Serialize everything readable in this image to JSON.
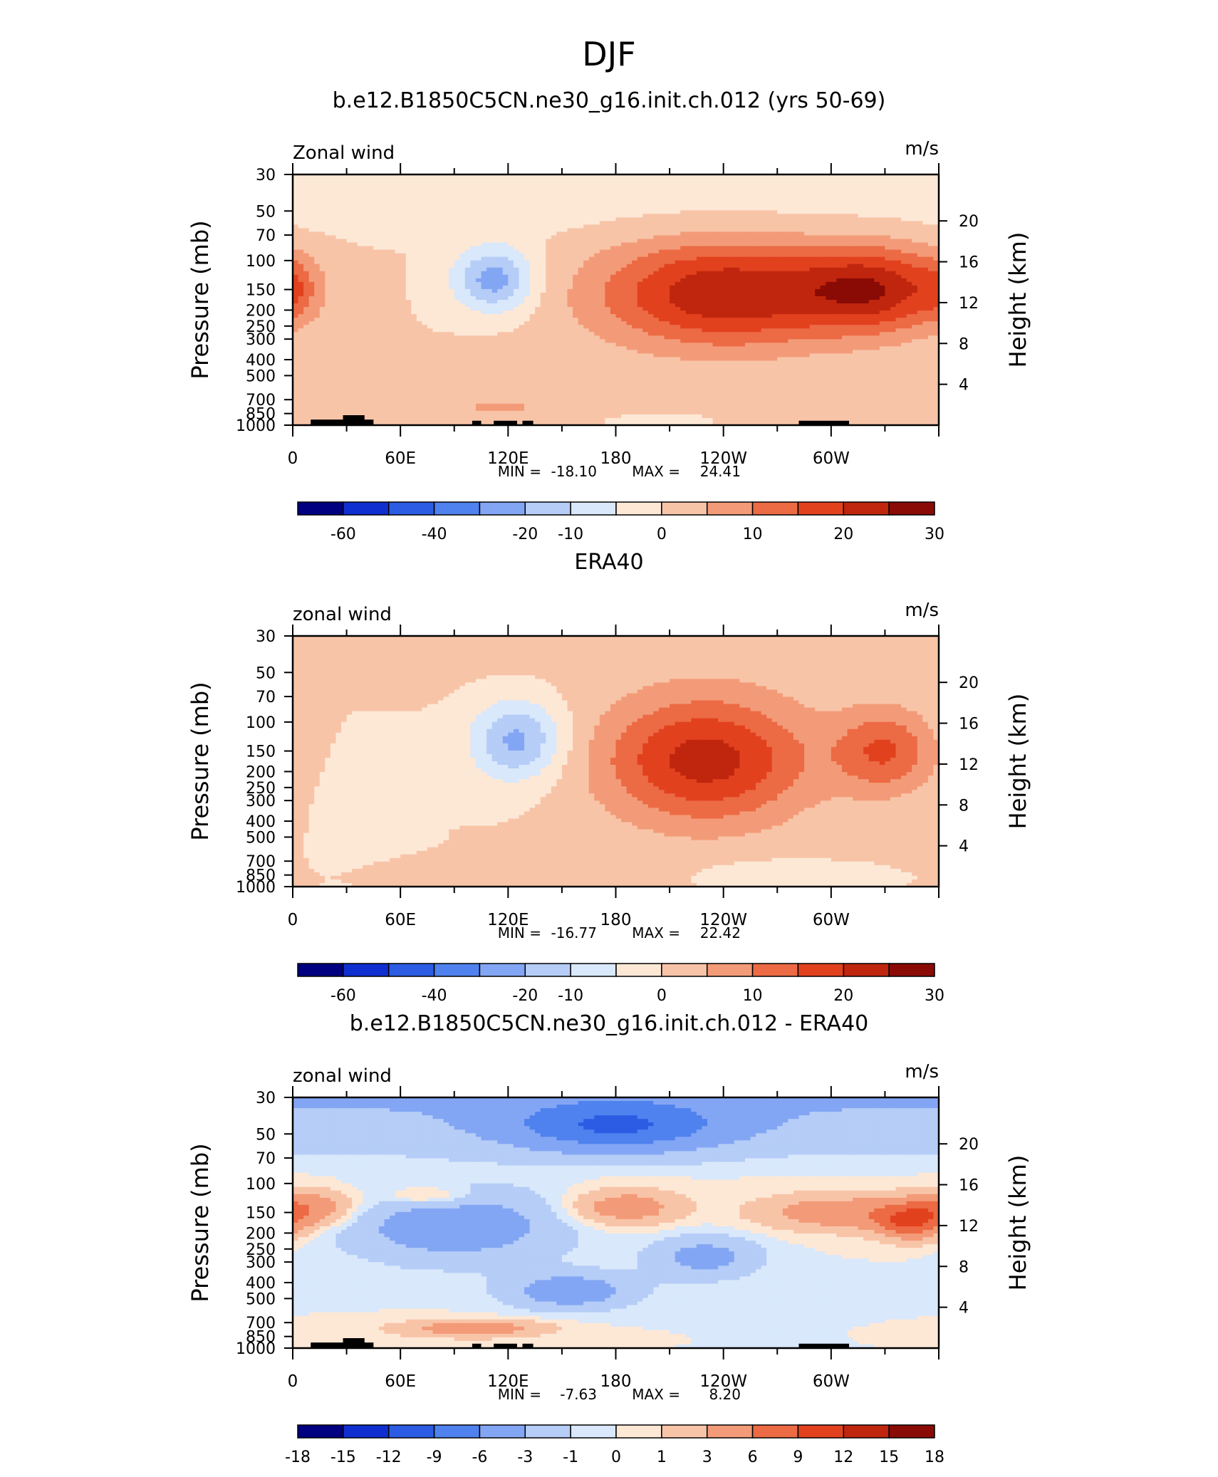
{
  "page_title": "DJF",
  "colors": {
    "cb_main": [
      "#000080",
      "#0f2fd0",
      "#2c5ce3",
      "#4f82ee",
      "#83a6f4",
      "#b5cdf7",
      "#d9e8fb",
      "#fde8d6",
      "#f8c4a8",
      "#f39b78",
      "#ec6a44",
      "#e2411e",
      "#c0260e",
      "#8a0b05"
    ],
    "cb_diff": [
      "#000080",
      "#0f2fd0",
      "#2c5ce3",
      "#4f82ee",
      "#83a6f4",
      "#b5cdf7",
      "#d9e8fb",
      "#fde8d6",
      "#f8c4a8",
      "#f39b78",
      "#ec6a44",
      "#e2411e",
      "#c0260e",
      "#8a0b05"
    ],
    "land": "#000000"
  },
  "chart_data": [
    {
      "type": "heatmap",
      "title": "b.e12.B1850C5CN.ne30_g16.init.ch.012 (yrs 50-69)",
      "left_label": "Zonal wind",
      "units": "m/s",
      "ylabel": "Pressure (mb)",
      "ylabel_right": "Height (km)",
      "x_ticks": [
        "0",
        "60E",
        "120E",
        "180",
        "120W",
        "60W"
      ],
      "y_ticks": [
        "30",
        "50",
        "70",
        "100",
        "150",
        "200",
        "250",
        "300",
        "400",
        "500",
        "700",
        "850",
        "1000"
      ],
      "y_right_ticks": [
        "20",
        "16",
        "12",
        "8",
        "4"
      ],
      "min_label": "MIN =",
      "min_value": "-18.10",
      "max_label": "MAX =",
      "max_value": "24.41",
      "colorbar_labels": [
        "-60",
        "-40",
        "-20",
        "-10",
        "0",
        "10",
        "20",
        "30"
      ],
      "features": [
        {
          "kind": "jet",
          "lon": 240,
          "p": 160,
          "lon_width": 70,
          "logp_width": 0.75,
          "peak": 24.4
        },
        {
          "kind": "jet",
          "lon": 325,
          "p": 150,
          "lon_width": 42,
          "logp_width": 0.6,
          "peak": 20.5
        },
        {
          "kind": "jet",
          "lon": 0,
          "p": 150,
          "lon_width": 12,
          "logp_width": 0.4,
          "peak": 7
        },
        {
          "kind": "jet",
          "lon": 123,
          "p": 420,
          "lon_width": 38,
          "logp_width": 0.28,
          "peak": 4
        },
        {
          "kind": "jet",
          "lon": 115,
          "p": 780,
          "lon_width": 35,
          "logp_width": 0.12,
          "peak": 6
        },
        {
          "kind": "jet",
          "lon": 45,
          "p": 900,
          "lon_width": 25,
          "logp_width": 0.1,
          "peak": 3.5
        },
        {
          "kind": "jet",
          "lon": 290,
          "p": 950,
          "lon_width": 14,
          "logp_width": 0.06,
          "peak": 3.5
        },
        {
          "kind": "easterly",
          "lon": 112,
          "p": 130,
          "lon_width": 22,
          "logp_width": 0.45,
          "peak": -18.1
        },
        {
          "kind": "easterly",
          "lon": 205,
          "p": 950,
          "lon_width": 15,
          "logp_width": 0.06,
          "peak": -5
        },
        {
          "kind": "stratosphere",
          "lon": 180,
          "p": 40,
          "value": -4
        }
      ]
    },
    {
      "type": "heatmap",
      "title": "ERA40",
      "left_label": "zonal wind",
      "units": "m/s",
      "ylabel": "Pressure (mb)",
      "ylabel_right": "Height (km)",
      "x_ticks": [
        "0",
        "60E",
        "120E",
        "180",
        "120W",
        "60W"
      ],
      "y_ticks": [
        "30",
        "50",
        "70",
        "100",
        "150",
        "200",
        "250",
        "300",
        "400",
        "500",
        "700",
        "850",
        "1000"
      ],
      "y_right_ticks": [
        "20",
        "16",
        "12",
        "8",
        "4"
      ],
      "min_label": "MIN =",
      "min_value": "-16.77",
      "max_label": "MAX =",
      "max_value": "22.42",
      "colorbar_labels": [
        "-60",
        "-40",
        "-20",
        "-10",
        "0",
        "10",
        "20",
        "30"
      ],
      "features": [
        {
          "kind": "jet",
          "lon": 230,
          "p": 170,
          "lon_width": 58,
          "logp_width": 0.9,
          "peak": 22.4
        },
        {
          "kind": "jet",
          "lon": 330,
          "p": 150,
          "lon_width": 28,
          "logp_width": 0.6,
          "peak": 15
        },
        {
          "kind": "jet",
          "lon": 130,
          "p": 800,
          "lon_width": 45,
          "logp_width": 0.15,
          "peak": 3.5
        },
        {
          "kind": "easterly",
          "lon": 125,
          "p": 130,
          "lon_width": 25,
          "logp_width": 0.55,
          "peak": -16.8
        },
        {
          "kind": "easterly",
          "lon": 40,
          "p": 250,
          "lon_width": 22,
          "logp_width": 0.55,
          "peak": -3
        },
        {
          "kind": "easterly",
          "lon": 265,
          "p": 830,
          "lon_width": 35,
          "logp_width": 0.18,
          "peak": -4
        },
        {
          "kind": "stratosphere",
          "lon": 180,
          "p": 40,
          "value": 1.5
        }
      ]
    },
    {
      "type": "heatmap",
      "title": "b.e12.B1850C5CN.ne30_g16.init.ch.012 - ERA40",
      "left_label": "zonal wind",
      "units": "m/s",
      "ylabel": "Pressure (mb)",
      "ylabel_right": "Height (km)",
      "x_ticks": [
        "0",
        "60E",
        "120E",
        "180",
        "120W",
        "60W"
      ],
      "y_ticks": [
        "30",
        "50",
        "70",
        "100",
        "150",
        "200",
        "250",
        "300",
        "400",
        "500",
        "700",
        "850",
        "1000"
      ],
      "y_right_ticks": [
        "20",
        "16",
        "12",
        "8",
        "4"
      ],
      "min_label": "MIN =",
      "min_value": "-7.63",
      "max_label": "MAX =",
      "max_value": "8.20",
      "colorbar_labels": [
        "-18",
        "-15",
        "-12",
        "-9",
        "-6",
        "-3",
        "-1",
        "0",
        "1",
        "3",
        "6",
        "9",
        "12",
        "15",
        "18"
      ],
      "features": [
        {
          "kind": "jet",
          "lon": 185,
          "p": 140,
          "lon_width": 30,
          "logp_width": 0.25,
          "peak": 5
        },
        {
          "kind": "jet",
          "lon": 305,
          "p": 150,
          "lon_width": 45,
          "logp_width": 0.25,
          "peak": 5
        },
        {
          "kind": "jet",
          "lon": 345,
          "p": 170,
          "lon_width": 20,
          "logp_width": 0.25,
          "peak": 8.2
        },
        {
          "kind": "jet",
          "lon": 10,
          "p": 140,
          "lon_width": 25,
          "logp_width": 0.25,
          "peak": 5
        },
        {
          "kind": "jet",
          "lon": 75,
          "p": 120,
          "lon_width": 25,
          "logp_width": 0.15,
          "peak": 3
        },
        {
          "kind": "jet",
          "lon": 100,
          "p": 760,
          "lon_width": 40,
          "logp_width": 0.12,
          "peak": 5
        },
        {
          "kind": "easterly",
          "lon": 180,
          "p": 45,
          "lon_width": 60,
          "logp_width": 0.35,
          "peak": -7.6
        },
        {
          "kind": "easterly",
          "lon": 90,
          "p": 180,
          "lon_width": 60,
          "logp_width": 0.5,
          "peak": -5
        },
        {
          "kind": "easterly",
          "lon": 155,
          "p": 450,
          "lon_width": 35,
          "logp_width": 0.25,
          "peak": -5
        },
        {
          "kind": "easterly",
          "lon": 230,
          "p": 280,
          "lon_width": 30,
          "logp_width": 0.3,
          "peak": -4
        },
        {
          "kind": "stratosphere",
          "lon": 180,
          "p": 40,
          "value": -3.5
        }
      ]
    }
  ]
}
